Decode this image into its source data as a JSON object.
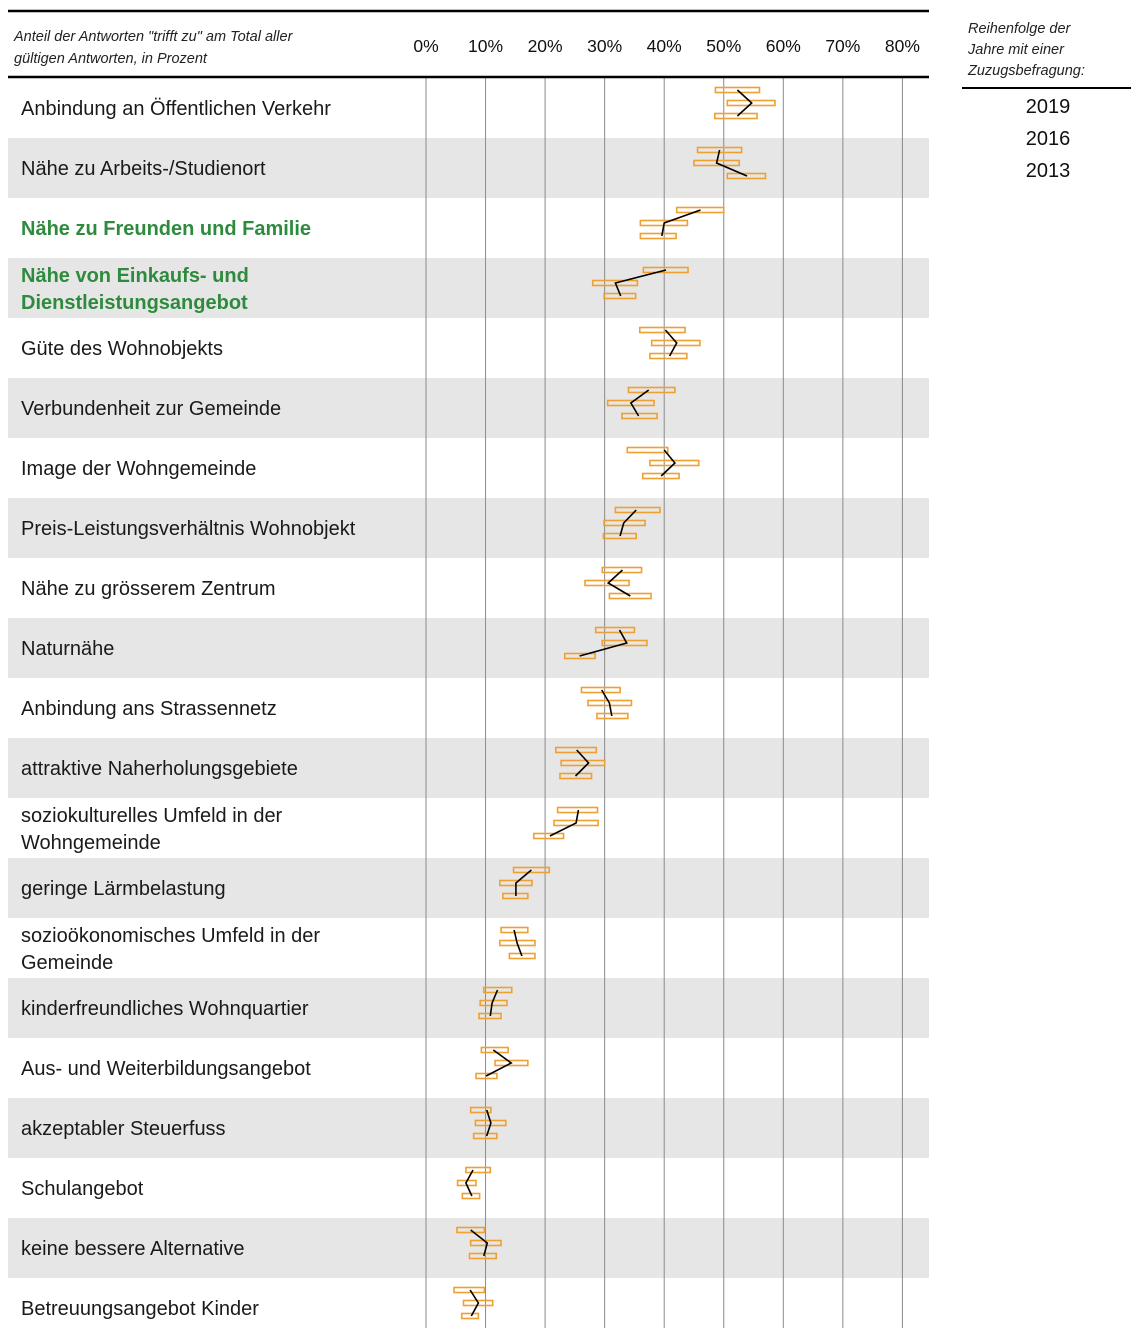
{
  "chart_data": {
    "type": "line",
    "subtitle": "Anteil der Antworten \"trifft zu\" am Total aller gültigen  Antworten, in Prozent",
    "x_ticks": [
      "0%",
      "10%",
      "20%",
      "30%",
      "40%",
      "50%",
      "60%",
      "70%",
      "80%"
    ],
    "xlim": [
      0,
      85
    ],
    "legend_title": "Reihenfolge der Jahre  mit einer Zuzugsbefragung:",
    "legend_years": [
      "2019",
      "2016",
      "2013"
    ],
    "colors": {
      "interval": "#f0a030",
      "trend": "#000000",
      "stripe": "#e6e6e6",
      "highlight": "#2e8b3e"
    },
    "grid": true,
    "categories": [
      {
        "label": [
          "Anbindung an Öffentlichen Verkehr"
        ],
        "highlight": false
      },
      {
        "label": [
          "Nähe zu Arbeits-/Studienort"
        ],
        "highlight": false
      },
      {
        "label": [
          "Nähe zu Freunden und Familie"
        ],
        "highlight": true
      },
      {
        "label": [
          "Nähe von Einkaufs- und",
          "Dienstleistungsangebot"
        ],
        "highlight": true
      },
      {
        "label": [
          "Güte des Wohnobjekts"
        ],
        "highlight": false
      },
      {
        "label": [
          "Verbundenheit zur Gemeinde"
        ],
        "highlight": false
      },
      {
        "label": [
          "Image der Wohngemeinde"
        ],
        "highlight": false
      },
      {
        "label": [
          "Preis-Leistungsverhältnis Wohnobjekt"
        ],
        "highlight": false
      },
      {
        "label": [
          "Nähe zu grösserem Zentrum"
        ],
        "highlight": false
      },
      {
        "label": [
          "Naturnähe"
        ],
        "highlight": false
      },
      {
        "label": [
          "Anbindung ans Strassennetz"
        ],
        "highlight": false
      },
      {
        "label": [
          "attraktive Naherholungsgebiete"
        ],
        "highlight": false
      },
      {
        "label": [
          "soziokulturelles Umfeld in der",
          "Wohngemeinde"
        ],
        "highlight": false
      },
      {
        "label": [
          "geringe Lärmbelastung"
        ],
        "highlight": false
      },
      {
        "label": [
          "sozioökonomisches Umfeld in der",
          "Gemeinde"
        ],
        "highlight": false
      },
      {
        "label": [
          "kinderfreundliches Wohnquartier"
        ],
        "highlight": false
      },
      {
        "label": [
          "Aus- und Weiterbildungsangebot"
        ],
        "highlight": false
      },
      {
        "label": [
          "akzeptabler Steuerfuss"
        ],
        "highlight": false
      },
      {
        "label": [
          "Schulangebot"
        ],
        "highlight": false
      },
      {
        "label": [
          "keine bessere Alternative"
        ],
        "highlight": false
      },
      {
        "label": [
          "Betreuungsangebot Kinder"
        ],
        "highlight": false
      }
    ],
    "series": [
      {
        "name": "2019",
        "values": [
          52.3,
          49.3,
          46.1,
          40.3,
          40.2,
          37.4,
          40.0,
          35.3,
          33.0,
          32.5,
          29.5,
          25.3,
          25.6,
          17.7,
          14.8,
          12.0,
          11.3,
          10.2,
          7.9,
          7.5,
          7.4
        ],
        "lower": [
          48.6,
          45.6,
          42.1,
          36.5,
          35.9,
          34.0,
          33.8,
          31.8,
          29.6,
          28.5,
          26.1,
          21.8,
          22.1,
          14.7,
          12.6,
          9.7,
          9.3,
          7.5,
          6.7,
          5.2,
          4.7
        ],
        "upper": [
          56.0,
          53.0,
          50.0,
          44.0,
          43.5,
          41.8,
          40.6,
          39.3,
          36.2,
          35.0,
          32.6,
          28.6,
          28.8,
          20.7,
          17.1,
          14.4,
          13.8,
          10.9,
          10.8,
          9.8,
          9.8
        ]
      },
      {
        "name": "2016",
        "values": [
          54.7,
          48.8,
          40.0,
          31.8,
          42.1,
          34.4,
          41.8,
          33.2,
          30.6,
          33.7,
          30.8,
          27.3,
          25.2,
          15.1,
          15.3,
          11.1,
          14.3,
          10.9,
          6.7,
          10.3,
          8.8
        ],
        "lower": [
          50.6,
          45.0,
          36.0,
          28.0,
          37.9,
          30.5,
          37.6,
          29.9,
          26.7,
          29.6,
          27.2,
          22.7,
          21.5,
          12.4,
          12.4,
          9.1,
          11.6,
          8.3,
          5.3,
          7.5,
          6.3
        ],
        "upper": [
          58.6,
          52.6,
          43.9,
          35.5,
          46.0,
          38.3,
          45.8,
          36.8,
          34.1,
          37.1,
          34.5,
          30.0,
          28.9,
          17.8,
          18.3,
          13.6,
          17.1,
          13.4,
          8.4,
          12.6,
          11.2
        ]
      },
      {
        "name": "2013",
        "values": [
          52.3,
          53.9,
          39.6,
          32.7,
          40.9,
          35.7,
          39.5,
          32.6,
          34.3,
          25.8,
          31.2,
          25.1,
          20.8,
          15.1,
          16.1,
          10.8,
          10.1,
          10.2,
          7.7,
          9.7,
          7.6
        ],
        "lower": [
          48.5,
          50.6,
          36.0,
          29.9,
          37.6,
          32.9,
          36.4,
          29.8,
          30.8,
          23.3,
          28.7,
          22.5,
          18.1,
          12.9,
          14.0,
          8.9,
          8.4,
          8.0,
          6.1,
          7.3,
          6.0
        ],
        "upper": [
          55.6,
          57.0,
          42.0,
          35.2,
          43.8,
          38.8,
          42.5,
          35.3,
          37.8,
          28.4,
          33.9,
          27.8,
          23.1,
          17.1,
          18.3,
          12.6,
          11.9,
          11.9,
          9.0,
          11.8,
          8.8
        ]
      }
    ]
  }
}
